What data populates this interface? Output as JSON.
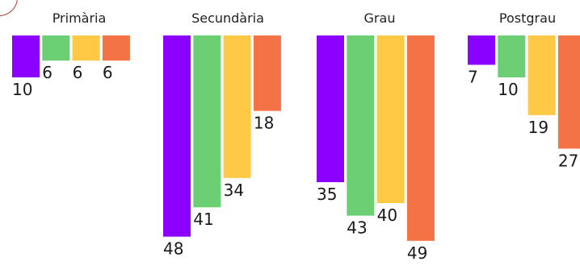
{
  "chart_data": {
    "type": "bar",
    "panels": [
      {
        "title": "Primària",
        "values": [
          10,
          6,
          6,
          6
        ]
      },
      {
        "title": "Secundària",
        "values": [
          48,
          41,
          34,
          18
        ]
      },
      {
        "title": "Grau",
        "values": [
          35,
          43,
          40,
          49
        ]
      },
      {
        "title": "Postgrau",
        "values": [
          7,
          10,
          19,
          27
        ]
      }
    ],
    "series_colors": [
      "#8c00ff",
      "#6ccf73",
      "#ffc845",
      "#f47346"
    ],
    "ylim": [
      0,
      50
    ],
    "orientation": "downward"
  }
}
